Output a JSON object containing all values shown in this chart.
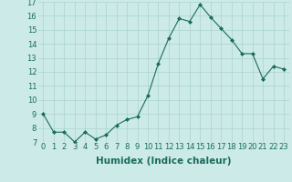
{
  "x": [
    0,
    1,
    2,
    3,
    4,
    5,
    6,
    7,
    8,
    9,
    10,
    11,
    12,
    13,
    14,
    15,
    16,
    17,
    18,
    19,
    20,
    21,
    22,
    23
  ],
  "y": [
    9,
    7.7,
    7.7,
    7.0,
    7.7,
    7.2,
    7.5,
    8.2,
    8.6,
    8.8,
    10.3,
    12.6,
    14.4,
    15.8,
    15.6,
    16.8,
    15.9,
    15.1,
    14.3,
    13.3,
    13.3,
    11.5,
    12.4,
    12.2
  ],
  "line_color": "#1a6b5e",
  "marker": "D",
  "marker_size": 2,
  "bg_color": "#cceae7",
  "grid_color": "#aad4d0",
  "text_color": "#1a6b5e",
  "xlabel": "Humidex (Indice chaleur)",
  "ylim": [
    7,
    17
  ],
  "xlim": [
    -0.5,
    23.5
  ],
  "yticks": [
    7,
    8,
    9,
    10,
    11,
    12,
    13,
    14,
    15,
    16,
    17
  ],
  "xticks": [
    0,
    1,
    2,
    3,
    4,
    5,
    6,
    7,
    8,
    9,
    10,
    11,
    12,
    13,
    14,
    15,
    16,
    17,
    18,
    19,
    20,
    21,
    22,
    23
  ],
  "tick_label_fontsize": 6,
  "xlabel_fontsize": 7.5
}
